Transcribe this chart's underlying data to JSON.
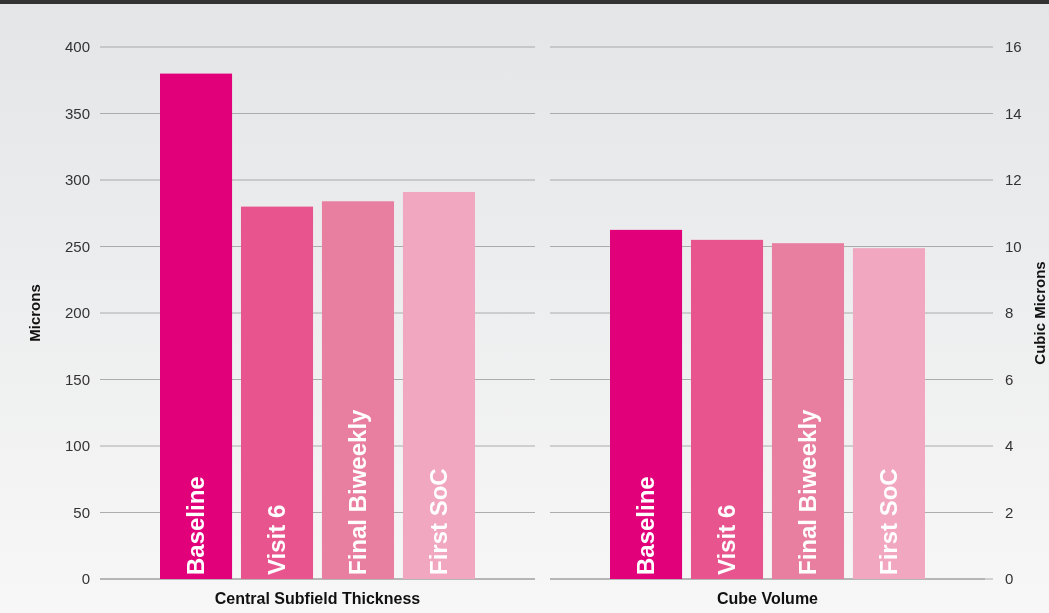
{
  "chart_data": [
    {
      "type": "bar",
      "categories": [
        "Baseline",
        "Visit 6",
        "Final Biweekly",
        "First SoC"
      ],
      "values": [
        380,
        280,
        284,
        291
      ],
      "colors": [
        "#e2007a",
        "#e8548d",
        "#e87fa0",
        "#f1a7bf"
      ],
      "ylim": [
        0,
        400
      ],
      "yticks": [
        0,
        50,
        100,
        150,
        200,
        250,
        300,
        350,
        400
      ],
      "xlabel": "Central Subfield Thickness",
      "ylabel": "Microns",
      "grid": "y"
    },
    {
      "type": "bar",
      "categories": [
        "Baseline",
        "Visit 6",
        "Final Biweekly",
        "First SoC"
      ],
      "series": [
        {
          "axis": "y2",
          "values": [
            10.5,
            10.2,
            10.1,
            9.95
          ],
          "colors": [
            "#e2007a",
            "#e8548d",
            "#e87fa0",
            "#f1a7bf"
          ]
        }
      ],
      "y2lim": [
        0,
        16
      ],
      "y2ticks": [
        0,
        2,
        4,
        6,
        8,
        10,
        12,
        14,
        16
      ],
      "xlabel": "Cube Volume",
      "y2label": "Cubic Microns",
      "grid": "y"
    }
  ]
}
